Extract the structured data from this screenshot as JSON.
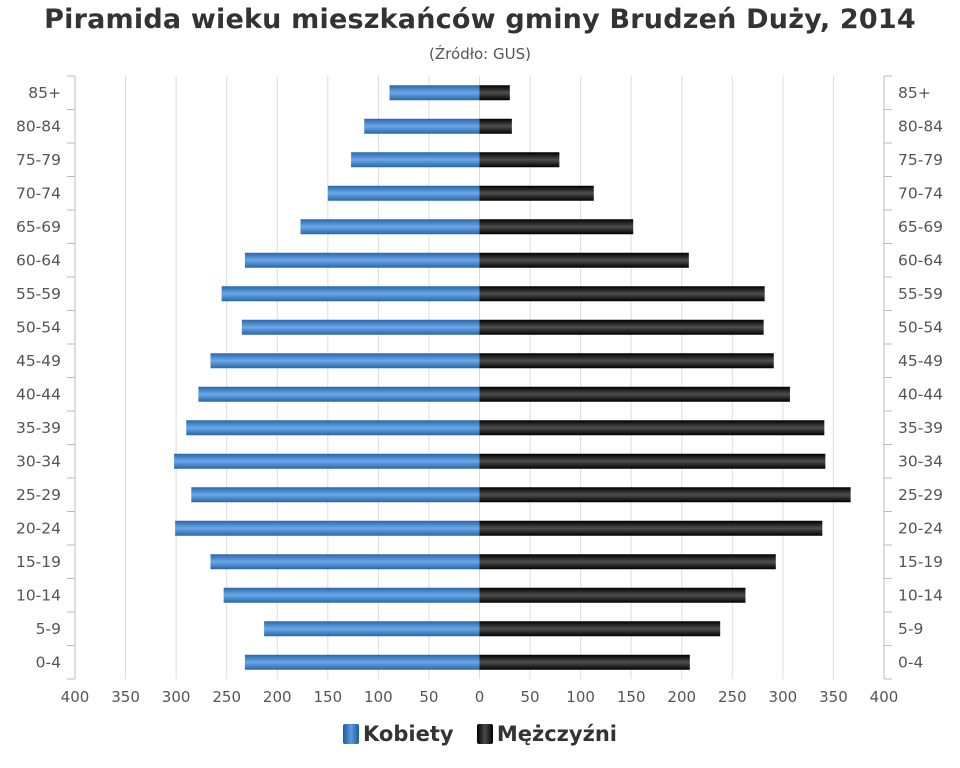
{
  "chart_data": {
    "type": "bar",
    "orientation": "horizontal",
    "title": "Piramida wieku mieszkańców gminy Brudzeń Duży, 2014",
    "subtitle": "(Źródło: GUS)",
    "categories": [
      "85+",
      "80-84",
      "75-79",
      "70-74",
      "65-69",
      "60-64",
      "55-59",
      "50-54",
      "45-49",
      "40-44",
      "35-39",
      "30-34",
      "25-29",
      "20-24",
      "15-19",
      "10-14",
      "5-9",
      "0-4"
    ],
    "series": [
      {
        "name": "Kobiety",
        "color": "#3b7dc4",
        "values": [
          89,
          114,
          127,
          150,
          177,
          232,
          255,
          235,
          266,
          278,
          290,
          302,
          285,
          301,
          266,
          253,
          213,
          232
        ]
      },
      {
        "name": "Mężczyźni",
        "color": "#1a1a1a",
        "values": [
          30,
          32,
          79,
          113,
          152,
          207,
          282,
          281,
          291,
          307,
          341,
          342,
          367,
          339,
          293,
          263,
          238,
          208
        ]
      }
    ],
    "x_ticks": [
      "400",
      "350",
      "300",
      "250",
      "200",
      "150",
      "100",
      "50",
      "0",
      "50",
      "100",
      "150",
      "200",
      "250",
      "300",
      "350",
      "400"
    ],
    "xlim": [
      -400,
      400
    ],
    "grid": true,
    "legend_position": "bottom-center"
  }
}
